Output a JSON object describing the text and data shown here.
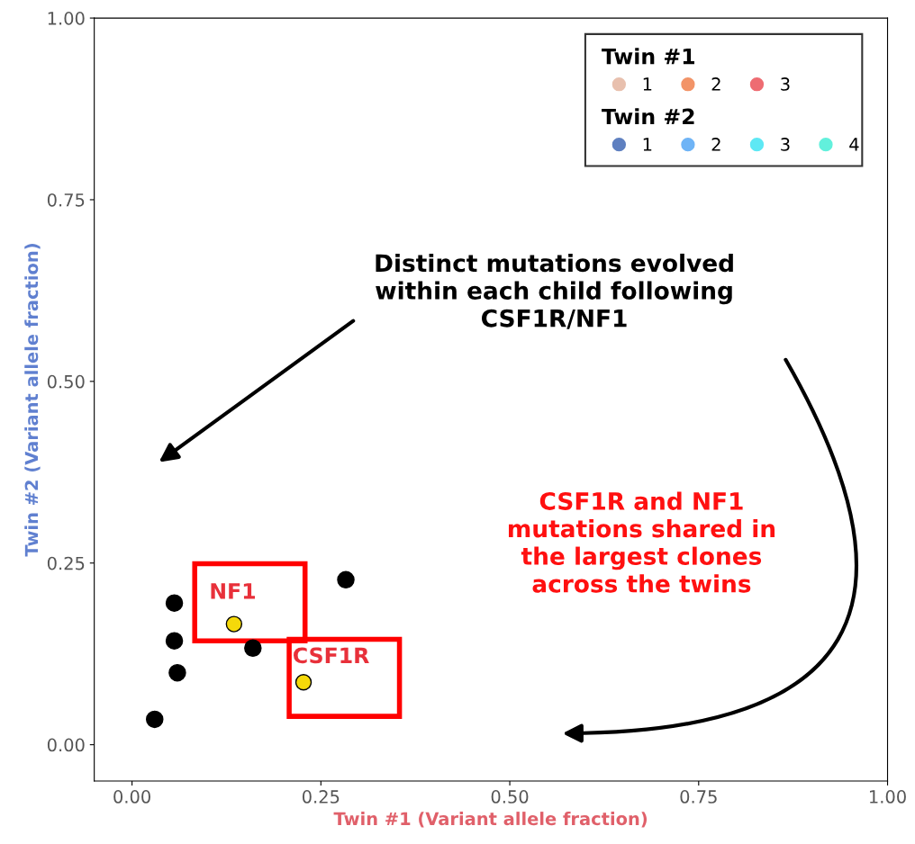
{
  "chart_data": {
    "type": "scatter",
    "xlabel": "Twin #1 (Variant allele fraction)",
    "ylabel": "Twin #2 (Variant allele fraction)",
    "xlim": [
      -0.05,
      1.0
    ],
    "ylim": [
      -0.05,
      1.0
    ],
    "xticks": [
      {
        "value": 0,
        "label": "0.00"
      },
      {
        "value": 0.25,
        "label": "0.25"
      },
      {
        "value": 0.5,
        "label": "0.50"
      },
      {
        "value": 0.75,
        "label": "0.75"
      },
      {
        "value": 1.0,
        "label": "1.00"
      }
    ],
    "yticks": [
      {
        "value": 0,
        "label": "0.00"
      },
      {
        "value": 0.25,
        "label": "0.25"
      },
      {
        "value": 0.5,
        "label": "0.50"
      },
      {
        "value": 0.75,
        "label": "0.75"
      },
      {
        "value": 1.0,
        "label": "1.00"
      }
    ],
    "grid": false,
    "legend": "top right",
    "marker": "circle",
    "series": [
      {
        "color": "#000000",
        "x": [
          0.056,
          0.056,
          0.06,
          0.03,
          0.16,
          0.283
        ],
        "values": [
          0.195,
          0.143,
          0.099,
          0.035,
          0.133,
          0.227
        ]
      },
      {
        "color": "#f5d90a",
        "x": [
          0.135,
          0.227
        ],
        "values": [
          0.166,
          0.086
        ]
      },
      {
        "name": "1",
        "color": "#e8c0ae"
      },
      {
        "name": "2",
        "color": "#f29468"
      },
      {
        "name": "3",
        "color": "#ee6c72"
      },
      {
        "name": "1",
        "color": "#5f80c0"
      },
      {
        "name": "2",
        "color": "#6fb4f6"
      },
      {
        "name": "3",
        "color": "#5ee8f4"
      },
      {
        "name": "4",
        "color": "#62f0dc"
      }
    ],
    "annotations": [
      "Twin #1",
      "Twin #2",
      "Distinct mutations evolved\nwithin each child following\nCSF1R/NF1",
      "CSF1R and NF1\nmutations shared in\nthe largest clones\nacross the twins",
      {
        "text": "NF1",
        "x": 0.135,
        "y": 0.166
      },
      {
        "text": "CSF1R",
        "x": 0.227,
        "y": 0.086
      }
    ]
  }
}
